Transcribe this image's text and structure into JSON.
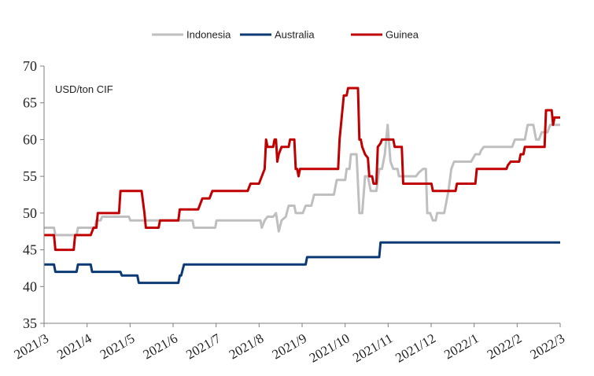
{
  "chart_data": {
    "type": "line",
    "title": "",
    "unit_label": "USD/ton CIF",
    "xlabel": "",
    "ylabel": "",
    "x_range": [
      "2021-03-01",
      "2022-03-01"
    ],
    "ylim": [
      35,
      70
    ],
    "yticks": [
      35,
      40,
      45,
      50,
      55,
      60,
      65,
      70
    ],
    "xticks": [
      "2021/3",
      "2021/4",
      "2021/5",
      "2021/6",
      "2021/7",
      "2021/8",
      "2021/9",
      "2021/10",
      "2021/11",
      "2021/12",
      "2022/1",
      "2022/2",
      "2022/3"
    ],
    "legend_position": "top-center",
    "grid": false,
    "series": [
      {
        "name": "Indonesia",
        "color": "#BFBFBF",
        "points": [
          [
            "2021-03-01",
            48
          ],
          [
            "2021-03-08",
            48
          ],
          [
            "2021-03-09",
            47
          ],
          [
            "2021-03-24",
            47
          ],
          [
            "2021-03-25",
            48
          ],
          [
            "2021-04-06",
            48
          ],
          [
            "2021-04-07",
            49
          ],
          [
            "2021-04-10",
            49
          ],
          [
            "2021-04-11",
            49.5
          ],
          [
            "2021-04-30",
            49.5
          ],
          [
            "2021-05-01",
            49
          ],
          [
            "2021-05-31",
            49
          ],
          [
            "2021-06-01",
            49
          ],
          [
            "2021-06-14",
            49
          ],
          [
            "2021-06-15",
            48
          ],
          [
            "2021-06-30",
            48
          ],
          [
            "2021-07-01",
            49
          ],
          [
            "2021-07-31",
            49
          ],
          [
            "2021-08-01",
            49
          ],
          [
            "2021-08-02",
            48
          ],
          [
            "2021-08-04",
            49
          ],
          [
            "2021-08-06",
            49.5
          ],
          [
            "2021-08-10",
            49.5
          ],
          [
            "2021-08-12",
            50
          ],
          [
            "2021-08-14",
            47.5
          ],
          [
            "2021-08-16",
            49
          ],
          [
            "2021-08-19",
            49.5
          ],
          [
            "2021-08-21",
            51
          ],
          [
            "2021-08-25",
            51
          ],
          [
            "2021-08-26",
            50
          ],
          [
            "2021-08-31",
            50
          ],
          [
            "2021-09-02",
            51
          ],
          [
            "2021-09-06",
            51
          ],
          [
            "2021-09-08",
            52.5
          ],
          [
            "2021-09-22",
            52.5
          ],
          [
            "2021-09-24",
            54.5
          ],
          [
            "2021-09-30",
            54.5
          ],
          [
            "2021-10-01",
            56
          ],
          [
            "2021-10-03",
            56
          ],
          [
            "2021-10-04",
            58
          ],
          [
            "2021-10-08",
            58
          ],
          [
            "2021-10-10",
            50
          ],
          [
            "2021-10-12",
            50
          ],
          [
            "2021-10-14",
            55
          ],
          [
            "2021-10-16",
            55
          ],
          [
            "2021-10-18",
            53
          ],
          [
            "2021-10-22",
            53
          ],
          [
            "2021-10-24",
            56
          ],
          [
            "2021-10-26",
            56
          ],
          [
            "2021-10-28",
            58
          ],
          [
            "2021-10-30",
            62
          ],
          [
            "2021-11-01",
            57
          ],
          [
            "2021-11-03",
            56
          ],
          [
            "2021-11-06",
            56
          ],
          [
            "2021-11-07",
            55
          ],
          [
            "2021-11-19",
            55
          ],
          [
            "2021-11-21",
            55.5
          ],
          [
            "2021-11-24",
            56
          ],
          [
            "2021-11-26",
            56
          ],
          [
            "2021-11-27",
            50
          ],
          [
            "2021-11-29",
            50
          ],
          [
            "2021-12-01",
            49
          ],
          [
            "2021-12-03",
            49
          ],
          [
            "2021-12-04",
            50
          ],
          [
            "2021-12-09",
            50
          ],
          [
            "2021-12-12",
            53
          ],
          [
            "2021-12-14",
            56
          ],
          [
            "2021-12-16",
            57
          ],
          [
            "2021-12-28",
            57
          ],
          [
            "2021-12-31",
            58
          ],
          [
            "2022-01-03",
            58
          ],
          [
            "2022-01-04",
            58.5
          ],
          [
            "2022-01-06",
            59
          ],
          [
            "2022-01-26",
            59
          ],
          [
            "2022-01-28",
            60
          ],
          [
            "2022-02-04",
            60
          ],
          [
            "2022-02-06",
            62
          ],
          [
            "2022-02-10",
            62
          ],
          [
            "2022-02-12",
            60
          ],
          [
            "2022-02-14",
            60
          ],
          [
            "2022-02-16",
            61
          ],
          [
            "2022-02-20",
            61
          ],
          [
            "2022-02-22",
            62
          ],
          [
            "2022-03-01",
            62
          ]
        ]
      },
      {
        "name": "Australia",
        "color": "#0B3A75",
        "points": [
          [
            "2021-03-01",
            43
          ],
          [
            "2021-03-08",
            43
          ],
          [
            "2021-03-09",
            42
          ],
          [
            "2021-03-24",
            42
          ],
          [
            "2021-03-25",
            43
          ],
          [
            "2021-04-03",
            43
          ],
          [
            "2021-04-04",
            42
          ],
          [
            "2021-04-24",
            42
          ],
          [
            "2021-04-25",
            41.5
          ],
          [
            "2021-05-06",
            41.5
          ],
          [
            "2021-05-07",
            40.5
          ],
          [
            "2021-06-04",
            40.5
          ],
          [
            "2021-06-05",
            41.5
          ],
          [
            "2021-06-06",
            41.5
          ],
          [
            "2021-06-08",
            43
          ],
          [
            "2021-09-02",
            43
          ],
          [
            "2021-09-03",
            44
          ],
          [
            "2021-10-24",
            44
          ],
          [
            "2021-10-25",
            46
          ],
          [
            "2022-03-01",
            46
          ]
        ]
      },
      {
        "name": "Guinea",
        "color": "#C00000",
        "points": [
          [
            "2021-03-01",
            47
          ],
          [
            "2021-03-08",
            47
          ],
          [
            "2021-03-09",
            45
          ],
          [
            "2021-03-22",
            45
          ],
          [
            "2021-03-23",
            47
          ],
          [
            "2021-04-03",
            47
          ],
          [
            "2021-04-05",
            48
          ],
          [
            "2021-04-07",
            48
          ],
          [
            "2021-04-08",
            50
          ],
          [
            "2021-04-23",
            50
          ],
          [
            "2021-04-24",
            53
          ],
          [
            "2021-05-09",
            53
          ],
          [
            "2021-05-11",
            50
          ],
          [
            "2021-05-12",
            48
          ],
          [
            "2021-05-21",
            48
          ],
          [
            "2021-05-22",
            49
          ],
          [
            "2021-06-04",
            49
          ],
          [
            "2021-06-05",
            50.5
          ],
          [
            "2021-06-18",
            50.5
          ],
          [
            "2021-06-20",
            51.5
          ],
          [
            "2021-06-21",
            52
          ],
          [
            "2021-06-26",
            52
          ],
          [
            "2021-06-28",
            53
          ],
          [
            "2021-07-23",
            53
          ],
          [
            "2021-07-25",
            54
          ],
          [
            "2021-07-31",
            54
          ],
          [
            "2021-08-02",
            55
          ],
          [
            "2021-08-04",
            56
          ],
          [
            "2021-08-05",
            60
          ],
          [
            "2021-08-06",
            59
          ],
          [
            "2021-08-10",
            59
          ],
          [
            "2021-08-11",
            60
          ],
          [
            "2021-08-12",
            60
          ],
          [
            "2021-08-13",
            57
          ],
          [
            "2021-08-14",
            58
          ],
          [
            "2021-08-16",
            59
          ],
          [
            "2021-08-21",
            59
          ],
          [
            "2021-08-22",
            60
          ],
          [
            "2021-08-25",
            60
          ],
          [
            "2021-08-26",
            56
          ],
          [
            "2021-08-27",
            56
          ],
          [
            "2021-08-28",
            55
          ],
          [
            "2021-08-29",
            56
          ],
          [
            "2021-09-25",
            56
          ],
          [
            "2021-09-26",
            60
          ],
          [
            "2021-09-27",
            62
          ],
          [
            "2021-09-29",
            66
          ],
          [
            "2021-10-01",
            66
          ],
          [
            "2021-10-02",
            67
          ],
          [
            "2021-10-09",
            67
          ],
          [
            "2021-10-10",
            60
          ],
          [
            "2021-10-11",
            60
          ],
          [
            "2021-10-12",
            59
          ],
          [
            "2021-10-14",
            58
          ],
          [
            "2021-10-16",
            57.5
          ],
          [
            "2021-10-17",
            55
          ],
          [
            "2021-10-19",
            55
          ],
          [
            "2021-10-20",
            54
          ],
          [
            "2021-10-22",
            54
          ],
          [
            "2021-10-23",
            59
          ],
          [
            "2021-10-25",
            59.5
          ],
          [
            "2021-10-26",
            60
          ],
          [
            "2021-11-03",
            60
          ],
          [
            "2021-11-04",
            59
          ],
          [
            "2021-11-09",
            59
          ],
          [
            "2021-11-10",
            54
          ],
          [
            "2021-11-30",
            54
          ],
          [
            "2021-12-01",
            53
          ],
          [
            "2021-12-17",
            53
          ],
          [
            "2021-12-18",
            54
          ],
          [
            "2021-12-31",
            54
          ],
          [
            "2022-01-01",
            56
          ],
          [
            "2022-01-22",
            56
          ],
          [
            "2022-01-23",
            56.5
          ],
          [
            "2022-01-25",
            57
          ],
          [
            "2022-01-31",
            57
          ],
          [
            "2022-02-01",
            58
          ],
          [
            "2022-02-03",
            58
          ],
          [
            "2022-02-04",
            59
          ],
          [
            "2022-02-18",
            59
          ],
          [
            "2022-02-19",
            64
          ],
          [
            "2022-02-23",
            64
          ],
          [
            "2022-02-24",
            62
          ],
          [
            "2022-02-25",
            63
          ],
          [
            "2022-03-01",
            63
          ]
        ]
      }
    ]
  }
}
